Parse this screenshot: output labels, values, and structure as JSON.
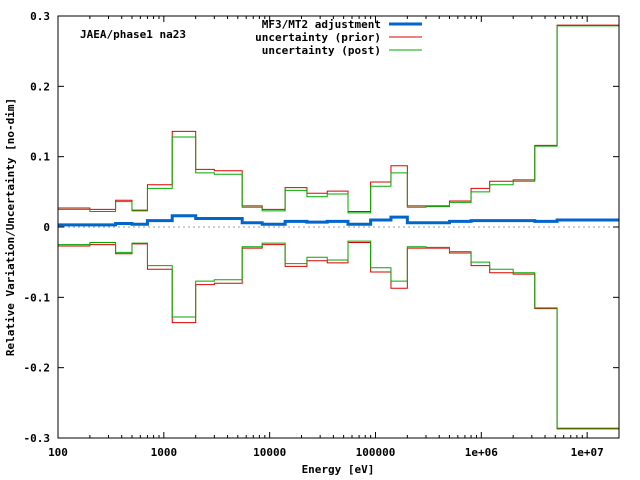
{
  "chart_data": {
    "type": "line",
    "annotation": "JAEA/phase1 na23",
    "xlabel": "Energy [eV]",
    "ylabel": "Relative Variation/Uncertainty [no-dim]",
    "xscale": "log",
    "xlim": [
      100,
      20000000
    ],
    "ylim": [
      -0.3,
      0.3
    ],
    "x_tick_labels": [
      "100",
      "1000",
      "10000",
      "100000",
      "1e+06",
      "1e+07"
    ],
    "y_tick_labels": [
      "0.3",
      "0.2",
      "0.1",
      "0",
      "-0.1",
      "-0.2",
      "-0.3"
    ],
    "legend_position": "top-right",
    "zero_line": true,
    "x_edges": [
      100,
      200,
      350,
      500,
      700,
      1200,
      2000,
      3000,
      5500,
      8500,
      14000,
      22500,
      35000,
      55000,
      90000,
      140000,
      200000,
      300000,
      500000,
      800000,
      1200000,
      2000000,
      3200000,
      5200000,
      8500000,
      20000000
    ],
    "series": [
      {
        "name": "MF3/MT2 adjustment",
        "color": "#0066cc",
        "style": "thick",
        "values": [
          0.003,
          0.003,
          0.005,
          0.004,
          0.009,
          0.016,
          0.012,
          0.012,
          0.006,
          0.004,
          0.008,
          0.007,
          0.008,
          0.004,
          0.01,
          0.014,
          0.006,
          0.006,
          0.008,
          0.009,
          0.009,
          0.009,
          0.008,
          0.01,
          0.01
        ]
      },
      {
        "name": "uncertainty (prior)",
        "color": "#dd0000",
        "style": "thin",
        "mirror": true,
        "values": [
          0.027,
          0.025,
          0.038,
          0.024,
          0.06,
          0.136,
          0.082,
          0.08,
          0.03,
          0.025,
          0.056,
          0.048,
          0.051,
          0.022,
          0.064,
          0.087,
          0.03,
          0.03,
          0.037,
          0.055,
          0.065,
          0.067,
          0.116,
          0.287,
          0.287
        ]
      },
      {
        "name": "uncertainty (post)",
        "color": "#00aa00",
        "style": "thin",
        "mirror": true,
        "values": [
          0.025,
          0.022,
          0.036,
          0.023,
          0.055,
          0.128,
          0.077,
          0.075,
          0.028,
          0.023,
          0.052,
          0.043,
          0.047,
          0.02,
          0.058,
          0.077,
          0.028,
          0.029,
          0.035,
          0.05,
          0.06,
          0.065,
          0.115,
          0.286,
          0.286
        ]
      }
    ]
  }
}
